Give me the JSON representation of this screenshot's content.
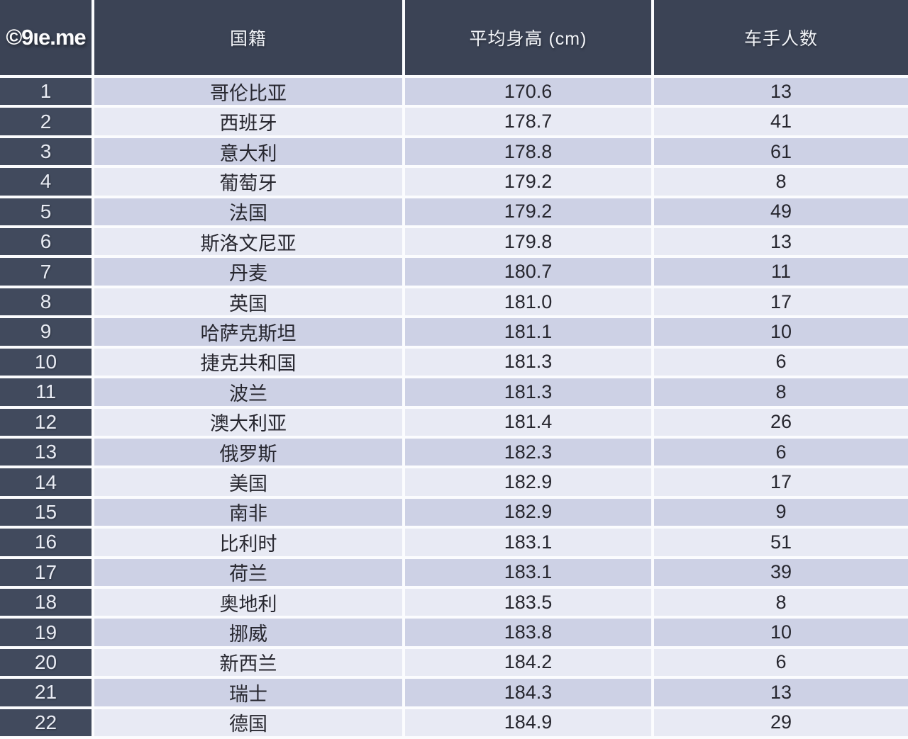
{
  "logo": {
    "text": "©9ιe.me"
  },
  "table": {
    "headers": {
      "rank": "",
      "country": "国籍",
      "height": "平均身高 (cm)",
      "riders": "车手人数"
    },
    "rows": [
      {
        "rank": "1",
        "country": "哥伦比亚",
        "height": "170.6",
        "riders": "13"
      },
      {
        "rank": "2",
        "country": "西班牙",
        "height": "178.7",
        "riders": "41"
      },
      {
        "rank": "3",
        "country": "意大利",
        "height": "178.8",
        "riders": "61"
      },
      {
        "rank": "4",
        "country": "葡萄牙",
        "height": "179.2",
        "riders": "8"
      },
      {
        "rank": "5",
        "country": "法国",
        "height": "179.2",
        "riders": "49"
      },
      {
        "rank": "6",
        "country": "斯洛文尼亚",
        "height": "179.8",
        "riders": "13"
      },
      {
        "rank": "7",
        "country": "丹麦",
        "height": "180.7",
        "riders": "11"
      },
      {
        "rank": "8",
        "country": "英国",
        "height": "181.0",
        "riders": "17"
      },
      {
        "rank": "9",
        "country": "哈萨克斯坦",
        "height": "181.1",
        "riders": "10"
      },
      {
        "rank": "10",
        "country": "捷克共和国",
        "height": "181.3",
        "riders": "6"
      },
      {
        "rank": "11",
        "country": "波兰",
        "height": "181.3",
        "riders": "8"
      },
      {
        "rank": "12",
        "country": "澳大利亚",
        "height": "181.4",
        "riders": "26"
      },
      {
        "rank": "13",
        "country": "俄罗斯",
        "height": "182.3",
        "riders": "6"
      },
      {
        "rank": "14",
        "country": "美国",
        "height": "182.9",
        "riders": "17"
      },
      {
        "rank": "15",
        "country": "南非",
        "height": "182.9",
        "riders": "9"
      },
      {
        "rank": "16",
        "country": "比利时",
        "height": "183.1",
        "riders": "51"
      },
      {
        "rank": "17",
        "country": "荷兰",
        "height": "183.1",
        "riders": "39"
      },
      {
        "rank": "18",
        "country": "奥地利",
        "height": "183.5",
        "riders": "8"
      },
      {
        "rank": "19",
        "country": "挪威",
        "height": "183.8",
        "riders": "10"
      },
      {
        "rank": "20",
        "country": "新西兰",
        "height": "184.2",
        "riders": "6"
      },
      {
        "rank": "21",
        "country": "瑞士",
        "height": "184.3",
        "riders": "13"
      },
      {
        "rank": "22",
        "country": "德国",
        "height": "184.9",
        "riders": "29"
      }
    ]
  },
  "colors": {
    "header_bg": "#3b4355",
    "rank_bg": "#414a5d",
    "row_odd_bg": "#cdd1e5",
    "row_even_bg": "#e8eaf4",
    "divider": "#fbfcfe",
    "header_text": "#f2f4f8",
    "data_text": "#27272f"
  },
  "chart_data": {
    "type": "table",
    "title": "",
    "columns": [
      "",
      "国籍",
      "平均身高 (cm)",
      "车手人数"
    ],
    "rows": [
      [
        1,
        "哥伦比亚",
        170.6,
        13
      ],
      [
        2,
        "西班牙",
        178.7,
        41
      ],
      [
        3,
        "意大利",
        178.8,
        61
      ],
      [
        4,
        "葡萄牙",
        179.2,
        8
      ],
      [
        5,
        "法国",
        179.2,
        49
      ],
      [
        6,
        "斯洛文尼亚",
        179.8,
        13
      ],
      [
        7,
        "丹麦",
        180.7,
        11
      ],
      [
        8,
        "英国",
        181.0,
        17
      ],
      [
        9,
        "哈萨克斯坦",
        181.1,
        10
      ],
      [
        10,
        "捷克共和国",
        181.3,
        6
      ],
      [
        11,
        "波兰",
        181.3,
        8
      ],
      [
        12,
        "澳大利亚",
        181.4,
        26
      ],
      [
        13,
        "俄罗斯",
        182.3,
        6
      ],
      [
        14,
        "美国",
        182.9,
        17
      ],
      [
        15,
        "南非",
        182.9,
        9
      ],
      [
        16,
        "比利时",
        183.1,
        51
      ],
      [
        17,
        "荷兰",
        183.1,
        39
      ],
      [
        18,
        "奥地利",
        183.5,
        8
      ],
      [
        19,
        "挪威",
        183.8,
        10
      ],
      [
        20,
        "新西兰",
        184.2,
        6
      ],
      [
        21,
        "瑞士",
        184.3,
        13
      ],
      [
        22,
        "德国",
        184.9,
        29
      ]
    ]
  }
}
